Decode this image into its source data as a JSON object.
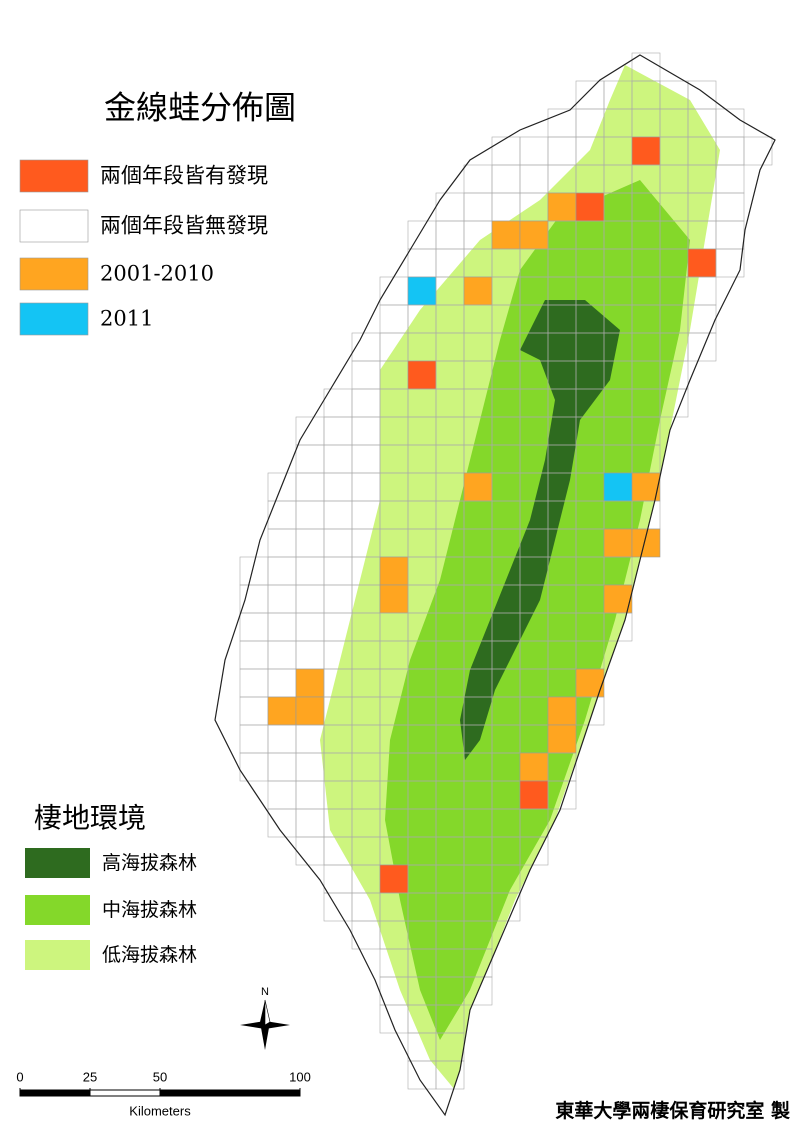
{
  "title": "金線蛙分佈圖",
  "legend": {
    "items": [
      {
        "label": "兩個年段皆有發現",
        "color": "#ff5a1e"
      },
      {
        "label": "兩個年段皆無發現",
        "color": "#ffffff"
      },
      {
        "label": "2001-2010",
        "color": "#ffa520"
      },
      {
        "label": "2011",
        "color": "#14c4f4"
      }
    ]
  },
  "habitat": {
    "title": "棲地環境",
    "items": [
      {
        "label": "高海拔森林",
        "color": "#2e6b1f"
      },
      {
        "label": "中海拔森林",
        "color": "#84d82a"
      },
      {
        "label": "低海拔森林",
        "color": "#cdf57e"
      }
    ]
  },
  "north": "N",
  "scale": {
    "ticks": [
      0,
      25,
      50,
      100
    ],
    "unit": "Kilometers"
  },
  "credit": "東華大學兩棲保育研究室 製"
}
